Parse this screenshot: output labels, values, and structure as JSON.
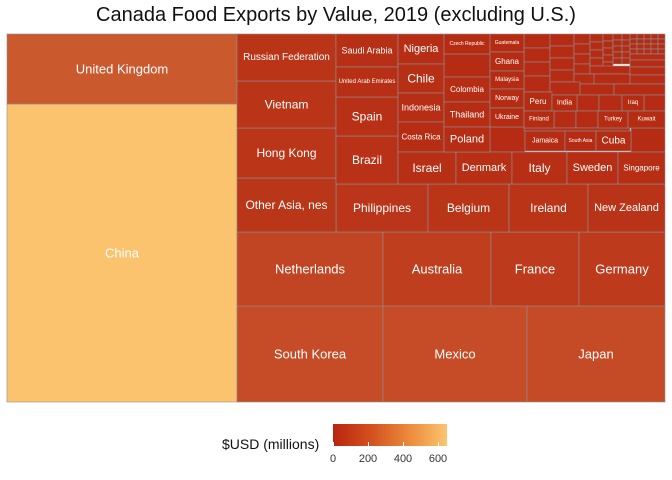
{
  "title": "Canada Food Exports by Value, 2019 (excluding U.S.)",
  "legend": {
    "title": "$USD (millions)",
    "ticks": [
      "0",
      "200",
      "400",
      "600"
    ],
    "color_low": "#b8250f",
    "color_high": "#fdc46e"
  },
  "colors": {
    "low": "#b52a12",
    "high": "#fcc36e",
    "border": "#8f8f8f"
  },
  "chart_data": {
    "type": "treemap",
    "title": "Canada Food Exports by Value, 2019 (excluding U.S.)",
    "color_scale_label": "$USD (millions)",
    "color_scale_range": [
      0,
      650
    ],
    "items": [
      {
        "name": "China",
        "value": 650
      },
      {
        "name": "United Kingdom",
        "value": 175
      },
      {
        "name": "South Korea",
        "value": 123
      },
      {
        "name": "Mexico",
        "value": 123
      },
      {
        "name": "Japan",
        "value": 120
      },
      {
        "name": "Netherlands",
        "value": 93
      },
      {
        "name": "Australia",
        "value": 69
      },
      {
        "name": "France",
        "value": 56
      },
      {
        "name": "Germany",
        "value": 56
      },
      {
        "name": "Philippines",
        "value": 36
      },
      {
        "name": "Belgium",
        "value": 33
      },
      {
        "name": "Ireland",
        "value": 32
      },
      {
        "name": "New Zealand",
        "value": 29
      },
      {
        "name": "Other Asia, nes",
        "value": 37
      },
      {
        "name": "Hong Kong",
        "value": 39
      },
      {
        "name": "Vietnam",
        "value": 31
      },
      {
        "name": "Russian Federation",
        "value": 32
      },
      {
        "name": "Brazil",
        "value": 24
      },
      {
        "name": "Spain",
        "value": 20
      },
      {
        "name": "Saudi Arabia",
        "value": 14
      },
      {
        "name": "United Arab Emirates",
        "value": 13
      },
      {
        "name": "Nigeria",
        "value": 11
      },
      {
        "name": "Chile",
        "value": 15
      },
      {
        "name": "Indonesia",
        "value": 12
      },
      {
        "name": "Costa Rica",
        "value": 9
      },
      {
        "name": "Israel",
        "value": 15
      },
      {
        "name": "Denmark",
        "value": 14
      },
      {
        "name": "Italy",
        "value": 14
      },
      {
        "name": "Sweden",
        "value": 12
      },
      {
        "name": "Singapore",
        "value": 10
      },
      {
        "name": "Czech Republic",
        "value": 6
      },
      {
        "name": "Guatemala",
        "value": 5
      },
      {
        "name": "Colombia",
        "value": 9
      },
      {
        "name": "Ghana",
        "value": 6
      },
      {
        "name": "Malaysia",
        "value": 5
      },
      {
        "name": "Thailand",
        "value": 8
      },
      {
        "name": "Norway",
        "value": 5
      },
      {
        "name": "Ukraine",
        "value": 5
      },
      {
        "name": "Poland",
        "value": 7
      },
      {
        "name": "Peru",
        "value": 4
      },
      {
        "name": "India",
        "value": 4
      },
      {
        "name": "Iraq",
        "value": 4
      },
      {
        "name": "Finland",
        "value": 4
      },
      {
        "name": "Turkey",
        "value": 4
      },
      {
        "name": "Kuwait",
        "value": 4
      },
      {
        "name": "Jamaica",
        "value": 4
      },
      {
        "name": "South Asia",
        "value": 3
      },
      {
        "name": "Cuba",
        "value": 4
      }
    ]
  }
}
